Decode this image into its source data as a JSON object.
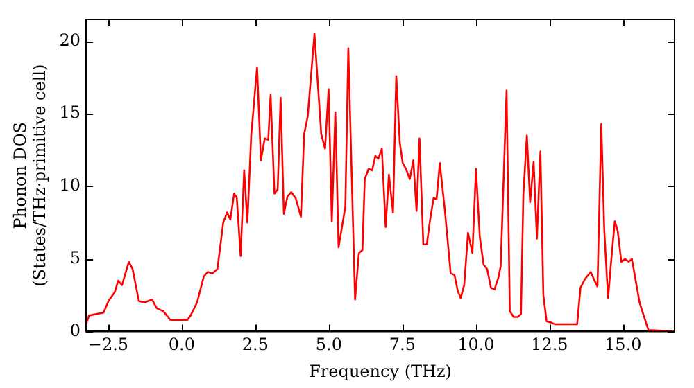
{
  "chart_data": {
    "type": "line",
    "xlabel": "Frequency (THz)",
    "ylabel": "Phonon DOS\n(States/THz·primitive cell)",
    "xlim": [
      -3.25,
      16.75
    ],
    "ylim": [
      0,
      21.5
    ],
    "xticks": [
      {
        "value": -2.5,
        "label": "−2.5"
      },
      {
        "value": 0,
        "label": "0.0"
      },
      2.5,
      {
        "value": 5,
        "label": "5.0"
      },
      7.5,
      {
        "value": 10,
        "label": "10.0"
      },
      12.5,
      {
        "value": 15,
        "label": "15.0"
      }
    ],
    "yticks": [
      0,
      5,
      10,
      15,
      20
    ],
    "grid": false,
    "legend": false,
    "marker": "none",
    "line_style": "solid",
    "series": [
      {
        "color": "#ff0000",
        "x": [
          -3.25,
          -3.15,
          -2.66,
          -2.49,
          -2.28,
          -2.16,
          -2.03,
          -1.8,
          -1.67,
          -1.46,
          -1.26,
          -1.01,
          -0.85,
          -0.63,
          -0.39,
          0.19,
          0.3,
          0.52,
          0.75,
          0.88,
          1.04,
          1.21,
          1.41,
          1.54,
          1.65,
          1.78,
          1.87,
          2.0,
          2.12,
          2.23,
          2.36,
          2.56,
          2.69,
          2.82,
          2.94,
          3.02,
          3.15,
          3.26,
          3.36,
          3.47,
          3.59,
          3.72,
          3.87,
          4.05,
          4.16,
          4.28,
          4.51,
          4.74,
          4.87,
          4.99,
          5.1,
          5.22,
          5.33,
          5.56,
          5.66,
          5.89,
          6.02,
          6.14,
          6.22,
          6.35,
          6.47,
          6.58,
          6.68,
          6.8,
          6.93,
          7.04,
          7.18,
          7.29,
          7.41,
          7.51,
          7.62,
          7.75,
          7.87,
          7.98,
          8.08,
          8.21,
          8.33,
          8.44,
          8.56,
          8.66,
          8.77,
          8.94,
          9.14,
          9.27,
          9.38,
          9.48,
          9.6,
          9.73,
          9.88,
          10.0,
          10.13,
          10.26,
          10.38,
          10.51,
          10.63,
          10.76,
          10.84,
          11.04,
          11.15,
          11.28,
          11.42,
          11.53,
          11.61,
          11.73,
          11.84,
          11.96,
          12.07,
          12.19,
          12.29,
          12.4,
          12.57,
          12.68,
          13.44,
          13.55,
          13.7,
          13.9,
          14.03,
          14.13,
          14.26,
          14.36,
          14.49,
          14.61,
          14.72,
          14.82,
          14.94,
          15.07,
          15.19,
          15.3,
          15.43,
          15.56,
          15.7,
          15.86,
          16.75
        ],
        "values": [
          0.5,
          1.1,
          1.3,
          2.1,
          2.7,
          3.5,
          3.2,
          4.8,
          4.3,
          2.1,
          2.0,
          2.2,
          1.6,
          1.4,
          0.8,
          0.8,
          1.1,
          2.0,
          3.8,
          4.1,
          4.0,
          4.3,
          7.5,
          8.2,
          7.7,
          9.5,
          9.2,
          5.2,
          11.1,
          7.5,
          13.5,
          18.2,
          11.8,
          13.3,
          13.2,
          16.3,
          9.5,
          9.8,
          16.1,
          8.1,
          9.3,
          9.6,
          9.2,
          7.9,
          13.6,
          14.8,
          20.5,
          13.6,
          12.6,
          16.7,
          7.6,
          15.1,
          5.8,
          8.6,
          19.5,
          2.2,
          5.4,
          5.6,
          10.5,
          11.2,
          11.1,
          12.1,
          11.9,
          12.6,
          7.2,
          10.8,
          8.2,
          17.6,
          13.0,
          11.6,
          11.2,
          10.5,
          11.8,
          8.3,
          13.3,
          6.0,
          6.0,
          7.7,
          9.2,
          9.1,
          11.6,
          8.4,
          4.0,
          3.9,
          2.8,
          2.3,
          3.2,
          6.8,
          5.4,
          11.2,
          6.5,
          4.6,
          4.3,
          3.0,
          2.9,
          3.7,
          4.5,
          16.6,
          1.4,
          1.0,
          1.0,
          1.2,
          9.4,
          13.5,
          8.9,
          11.7,
          6.4,
          12.4,
          2.5,
          0.7,
          0.6,
          0.5,
          0.5,
          3.0,
          3.6,
          4.1,
          3.5,
          3.1,
          14.3,
          7.0,
          2.3,
          5.2,
          7.6,
          6.9,
          4.8,
          5.0,
          4.8,
          5.0,
          3.5,
          2.0,
          1.1,
          0.1,
          0
        ]
      }
    ]
  }
}
